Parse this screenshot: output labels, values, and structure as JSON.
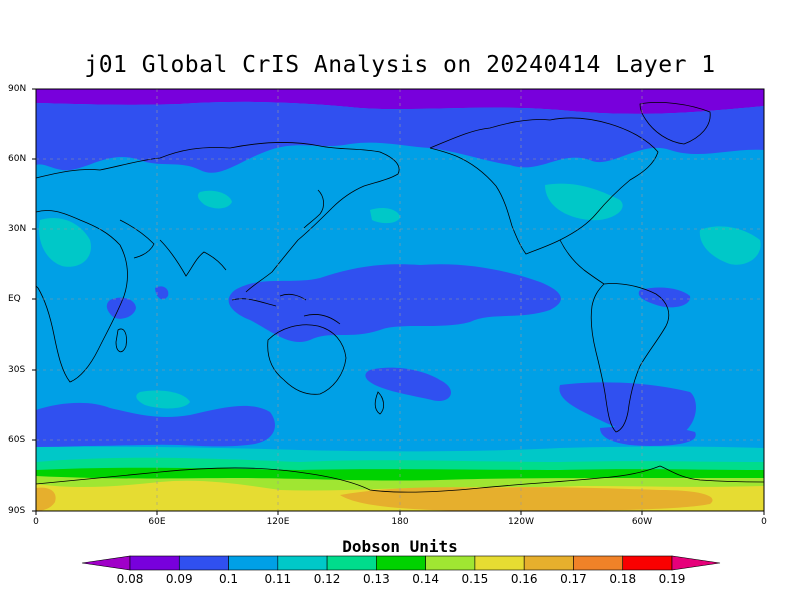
{
  "title": "j01 Global CrIS Analysis on 20240414 Layer 1",
  "y_axis_labels": [
    "90N",
    "60N",
    "30N",
    "EQ",
    "30S",
    "60S",
    "90S"
  ],
  "x_axis_labels": [
    "0",
    "60E",
    "120E",
    "180",
    "120W",
    "60W",
    "0"
  ],
  "colorbar": {
    "title": "Dobson Units",
    "labels": [
      "0.08",
      "0.09",
      "0.1",
      "0.11",
      "0.12",
      "0.13",
      "0.14",
      "0.15",
      "0.16",
      "0.17",
      "0.18",
      "0.19"
    ],
    "colors": [
      "#a000c8",
      "#7800dc",
      "#3050f0",
      "#00a0e6",
      "#00c8c8",
      "#00dc8c",
      "#00d200",
      "#a0e632",
      "#e6dc32",
      "#e6af2d",
      "#f08228",
      "#fa0000",
      "#e6007a"
    ]
  },
  "chart_data": {
    "type": "heatmap",
    "title": "j01 Global CrIS Analysis on 20240414 Layer 1",
    "xlabel": "",
    "ylabel": "",
    "x_range": [
      "0",
      "0"
    ],
    "y_range": [
      "90S",
      "90N"
    ],
    "units": "Dobson Units",
    "value_levels": [
      0.08,
      0.09,
      0.1,
      0.11,
      0.12,
      0.13,
      0.14,
      0.15,
      0.16,
      0.17,
      0.18,
      0.19
    ],
    "regions": [
      {
        "region": "north polar band",
        "value_range": [
          0.09,
          0.1
        ]
      },
      {
        "region": "northern high latitudes",
        "value_range": [
          0.1,
          0.11
        ]
      },
      {
        "region": "tropics and mid-latitudes (background)",
        "value_range": [
          0.11,
          0.12
        ]
      },
      {
        "region": "tropical western/central Pacific",
        "value_range": [
          0.1,
          0.11
        ]
      },
      {
        "region": "southern ocean band ~50S",
        "value_range": [
          0.1,
          0.11
        ]
      },
      {
        "region": "Antarctic coast ~70S",
        "value_range": [
          0.13,
          0.15
        ]
      },
      {
        "region": "Antarctica interior",
        "value_range": [
          0.15,
          0.17
        ]
      }
    ],
    "grid": true,
    "legend": "bottom"
  }
}
